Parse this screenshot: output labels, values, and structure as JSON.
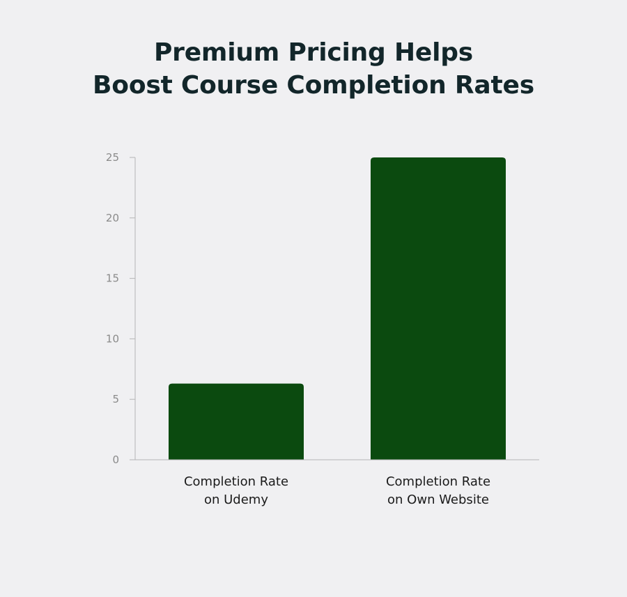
{
  "title_lines": [
    "Premium Pricing Helps",
    "Boost Course Completion Rates"
  ],
  "colors": {
    "bar": "#0b4a0f",
    "axis": "#b5b5b5",
    "background": "#f0f0f2",
    "title": "#12262a"
  },
  "chart_data": {
    "type": "bar",
    "title": "Premium Pricing Helps Boost Course Completion Rates",
    "categories": [
      [
        "Completion Rate",
        "on Udemy"
      ],
      [
        "Completion Rate",
        "on Own Website"
      ]
    ],
    "values": [
      6.3,
      25
    ],
    "ylim": [
      0,
      25
    ],
    "yticks": [
      0,
      5,
      10,
      15,
      20,
      25
    ],
    "xlabel": "",
    "ylabel": "",
    "grid": false,
    "legend": "none"
  }
}
